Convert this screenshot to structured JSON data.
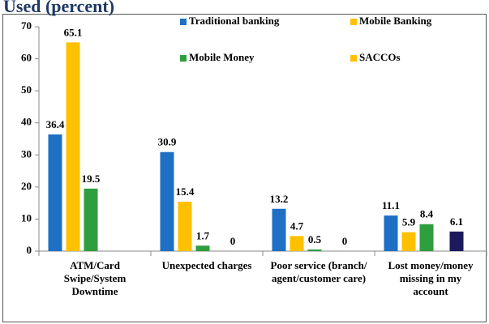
{
  "chart_data": {
    "type": "bar",
    "title": "Used (percent)",
    "categories": [
      [
        "ATM/Card",
        "Swipe/System",
        "Downtime"
      ],
      [
        "Unexpected charges"
      ],
      [
        "Poor service (branch/",
        "agent/customer care)"
      ],
      [
        "Lost money/money",
        "missing in my",
        "account"
      ]
    ],
    "series": [
      {
        "name": "Traditional banking",
        "color": "#1f6fc5",
        "values": [
          36.4,
          30.9,
          13.2,
          11.1
        ]
      },
      {
        "name": "Mobile Banking",
        "color": "#ffc000",
        "values": [
          65.1,
          15.4,
          4.7,
          5.9
        ]
      },
      {
        "name": "Mobile Money",
        "color": "#2e9e3e",
        "values": [
          19.5,
          1.7,
          0.5,
          8.4
        ]
      },
      {
        "name": "SACCOs",
        "color": "#ffc000",
        "bar_color": "#1c1a5c",
        "values": [
          null,
          0,
          0,
          6.1
        ]
      }
    ],
    "ylim": [
      0,
      70
    ],
    "yticks": [
      0,
      10,
      20,
      30,
      40,
      50,
      60,
      70
    ],
    "grid": false
  }
}
